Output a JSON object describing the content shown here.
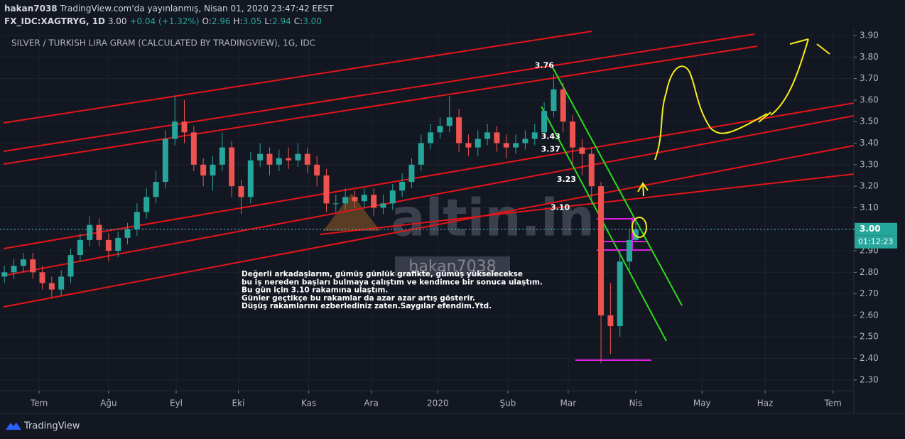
{
  "header": {
    "user": "hakan7038",
    "published": "TradingView.com'da yayınlanmış, Nisan 01, 2020 23:47:42 EEST",
    "symbol": "FX_IDC:XAGTRYG, 1D",
    "last": "3.00",
    "change": "+0.04 (+1.32%)",
    "ohlc": [
      {
        "key": "O:",
        "value": "2.96"
      },
      {
        "key": "H:",
        "value": "3.05"
      },
      {
        "key": "L:",
        "value": "2.94"
      },
      {
        "key": "C:",
        "value": "3.00"
      }
    ]
  },
  "chart_data": {
    "type": "candlestick",
    "title": "SILVER / TURKISH LIRA GRAM (CALCULATED BY TRADINGVIEW), 1G, IDC",
    "x": [
      -11,
      -8,
      -5,
      -2,
      1,
      4,
      7,
      10,
      13,
      16,
      19,
      22,
      25,
      28,
      31,
      34,
      37,
      40,
      43,
      46,
      49,
      52,
      55,
      58,
      61,
      64,
      67,
      70,
      73,
      76,
      79,
      82,
      85,
      88,
      91,
      94,
      97,
      100,
      103,
      106,
      109,
      112,
      115,
      118,
      121,
      124,
      127,
      130,
      133,
      136,
      139,
      142,
      145,
      148,
      151,
      154,
      157,
      160,
      163,
      166,
      169,
      172,
      175,
      178,
      181,
      184,
      187,
      189
    ],
    "open": [
      2.78,
      2.8,
      2.83,
      2.86,
      2.8,
      2.75,
      2.72,
      2.78,
      2.88,
      2.95,
      3.02,
      2.95,
      2.9,
      2.96,
      3.0,
      3.08,
      3.15,
      3.22,
      3.42,
      3.5,
      3.45,
      3.3,
      3.25,
      3.3,
      3.38,
      3.2,
      3.15,
      3.32,
      3.35,
      3.3,
      3.33,
      3.32,
      3.35,
      3.3,
      3.25,
      3.12,
      3.12,
      3.15,
      3.13,
      3.16,
      3.1,
      3.12,
      3.18,
      3.22,
      3.3,
      3.4,
      3.45,
      3.48,
      3.52,
      3.4,
      3.38,
      3.42,
      3.45,
      3.4,
      3.38,
      3.4,
      3.42,
      3.45,
      3.55,
      3.65,
      3.5,
      3.38,
      3.35,
      3.2,
      2.6,
      2.55,
      2.85,
      2.95
    ],
    "high": [
      2.83,
      2.86,
      2.89,
      2.89,
      2.83,
      2.78,
      2.81,
      2.91,
      2.98,
      3.06,
      3.05,
      2.98,
      2.99,
      3.03,
      3.12,
      3.19,
      3.27,
      3.46,
      3.62,
      3.6,
      3.48,
      3.33,
      3.34,
      3.45,
      3.41,
      3.23,
      3.36,
      3.4,
      3.38,
      3.37,
      3.38,
      3.4,
      3.38,
      3.34,
      3.28,
      3.16,
      3.19,
      3.18,
      3.19,
      3.19,
      3.16,
      3.21,
      3.26,
      3.33,
      3.44,
      3.49,
      3.52,
      3.62,
      3.56,
      3.44,
      3.46,
      3.49,
      3.48,
      3.44,
      3.44,
      3.46,
      3.49,
      3.59,
      3.72,
      3.68,
      3.53,
      3.42,
      3.38,
      3.22,
      2.75,
      2.9,
      3.0,
      3.05
    ],
    "low": [
      2.75,
      2.77,
      2.8,
      2.77,
      2.72,
      2.68,
      2.69,
      2.75,
      2.85,
      2.92,
      2.92,
      2.85,
      2.87,
      2.93,
      2.97,
      3.05,
      3.12,
      3.19,
      3.39,
      3.4,
      3.27,
      3.2,
      3.18,
      3.27,
      3.15,
      3.07,
      3.12,
      3.29,
      3.25,
      3.27,
      3.28,
      3.29,
      3.26,
      3.2,
      3.08,
      3.08,
      3.09,
      3.1,
      3.1,
      3.06,
      3.07,
      3.09,
      3.15,
      3.19,
      3.27,
      3.37,
      3.42,
      3.45,
      3.36,
      3.34,
      3.34,
      3.39,
      3.36,
      3.33,
      3.35,
      3.37,
      3.39,
      3.42,
      3.52,
      3.45,
      3.3,
      3.25,
      3.12,
      2.38,
      2.42,
      2.5,
      2.8,
      2.94
    ],
    "close": [
      2.8,
      2.83,
      2.86,
      2.8,
      2.75,
      2.72,
      2.78,
      2.88,
      2.95,
      3.02,
      2.95,
      2.9,
      2.96,
      3.0,
      3.08,
      3.15,
      3.22,
      3.42,
      3.5,
      3.45,
      3.3,
      3.25,
      3.3,
      3.38,
      3.2,
      3.15,
      3.32,
      3.35,
      3.3,
      3.33,
      3.32,
      3.35,
      3.3,
      3.25,
      3.12,
      3.12,
      3.15,
      3.13,
      3.16,
      3.1,
      3.12,
      3.18,
      3.22,
      3.3,
      3.4,
      3.45,
      3.48,
      3.52,
      3.4,
      3.38,
      3.42,
      3.45,
      3.4,
      3.38,
      3.4,
      3.42,
      3.45,
      3.55,
      3.65,
      3.5,
      3.38,
      3.35,
      3.2,
      2.6,
      2.55,
      2.85,
      2.95,
      3.0
    ],
    "up_color": "#26a69a",
    "down_color": "#ef5350",
    "xlim": [
      -12.4,
      258.1
    ],
    "xticks": [
      {
        "value": 0,
        "label": "Tem"
      },
      {
        "value": 22,
        "label": "Ağu"
      },
      {
        "value": 43.4,
        "label": "Eyl"
      },
      {
        "value": 63.1,
        "label": "Eki"
      },
      {
        "value": 85.4,
        "label": "Kas"
      },
      {
        "value": 105.2,
        "label": "Ara"
      },
      {
        "value": 126.3,
        "label": "2020"
      },
      {
        "value": 148.5,
        "label": "Şub"
      },
      {
        "value": 167.6,
        "label": "Mar"
      },
      {
        "value": 189,
        "label": "Nis"
      },
      {
        "value": 210,
        "label": "May"
      },
      {
        "value": 230,
        "label": "Haz"
      },
      {
        "value": 251.5,
        "label": "Tem"
      }
    ],
    "ylim": [
      2.25,
      3.933
    ],
    "yticks": [
      {
        "value": 2.3,
        "label": "2.30"
      },
      {
        "value": 2.4,
        "label": "2.40"
      },
      {
        "value": 2.5,
        "label": "2.50"
      },
      {
        "value": 2.6,
        "label": "2.60"
      },
      {
        "value": 2.7,
        "label": "2.70"
      },
      {
        "value": 2.8,
        "label": "2.80"
      },
      {
        "value": 2.9,
        "label": "2.90"
      },
      {
        "value": 3.0,
        "label": "3.00"
      },
      {
        "value": 3.1,
        "label": "3.10"
      },
      {
        "value": 3.2,
        "label": "3.20"
      },
      {
        "value": 3.3,
        "label": "3.30"
      },
      {
        "value": 3.4,
        "label": "3.40"
      },
      {
        "value": 3.5,
        "label": "3.50"
      },
      {
        "value": 3.6,
        "label": "3.60"
      },
      {
        "value": 3.7,
        "label": "3.70"
      },
      {
        "value": 3.8,
        "label": "3.80"
      },
      {
        "value": 3.9,
        "label": "3.90"
      }
    ],
    "grid": true,
    "last_price": {
      "value": 3.0,
      "label": "3.00"
    },
    "countdown": "01:12:23",
    "price_notes": [
      {
        "value": 3.76,
        "label": "3.76",
        "x": 157
      },
      {
        "value": 3.43,
        "label": "3.43",
        "x": 159
      },
      {
        "value": 3.37,
        "label": "3.37",
        "x": 159
      },
      {
        "value": 3.23,
        "label": "3.23",
        "x": 164
      },
      {
        "value": 3.1,
        "label": "3.10",
        "x": 162
      }
    ],
    "note_lines": [
      "Değerli arkadaşlarım, gümüş günlük grafikte, gümüş yükselecekse",
      "bu iş nereden başları  bulmaya çalıştım ve  kendimce bir sonuca ulaştım.",
      "Bu gün için 3.10 rakamına ulaştım.",
      "Günler geçtikçe bu rakamlar da azar azar artış gösterir.",
      "Düşüş rakamlarını ezberlediniz zaten.Saygılar efendim.Ytd."
    ],
    "watermark": "altin.in",
    "author_mark": "hakan7038"
  },
  "footer": "TradingView"
}
